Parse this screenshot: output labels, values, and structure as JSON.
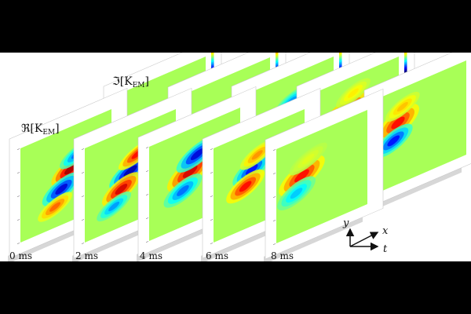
{
  "rows": {
    "real_label": "ℜ[K",
    "real_sub": "EM",
    "real_close": "]",
    "imag_label": "ℑ[K",
    "imag_sub": "EM",
    "imag_close": "]"
  },
  "time_labels": [
    "0 ms",
    "2 ms",
    "4 ms",
    "6 ms",
    "8 ms"
  ],
  "axes": {
    "y": "y",
    "x": "x",
    "t": "t"
  },
  "colorscale": "jet",
  "panels": {
    "real": [
      {
        "time": "0 ms",
        "blobs": [
          [
            0.55,
            0.45,
            0.1,
            0.05,
            1.0
          ],
          [
            0.45,
            0.62,
            0.1,
            0.05,
            -0.9
          ],
          [
            0.38,
            0.78,
            0.09,
            0.04,
            0.6
          ],
          [
            0.62,
            0.32,
            0.09,
            0.04,
            -0.6
          ]
        ]
      },
      {
        "time": "2 ms",
        "blobs": [
          [
            0.5,
            0.45,
            0.11,
            0.05,
            -1.0
          ],
          [
            0.4,
            0.6,
            0.1,
            0.05,
            0.9
          ],
          [
            0.58,
            0.3,
            0.1,
            0.04,
            0.8
          ],
          [
            0.32,
            0.75,
            0.09,
            0.04,
            -0.5
          ]
        ]
      },
      {
        "time": "4 ms",
        "blobs": [
          [
            0.45,
            0.45,
            0.12,
            0.06,
            0.9
          ],
          [
            0.53,
            0.3,
            0.11,
            0.05,
            -0.9
          ],
          [
            0.37,
            0.62,
            0.1,
            0.05,
            -0.6
          ]
        ]
      },
      {
        "time": "6 ms",
        "blobs": [
          [
            0.42,
            0.4,
            0.1,
            0.05,
            -0.8
          ],
          [
            0.35,
            0.55,
            0.1,
            0.05,
            0.8
          ],
          [
            0.48,
            0.27,
            0.09,
            0.04,
            0.5
          ]
        ]
      },
      {
        "time": "8 ms",
        "blobs": [
          [
            0.28,
            0.4,
            0.12,
            0.06,
            0.8
          ],
          [
            0.22,
            0.56,
            0.1,
            0.05,
            -0.4
          ],
          [
            0.35,
            0.25,
            0.1,
            0.04,
            0.2
          ]
        ]
      }
    ],
    "imag": [
      {
        "time": "0 ms",
        "blobs": [
          [
            0.55,
            0.55,
            0.1,
            0.05,
            1.0
          ],
          [
            0.45,
            0.38,
            0.09,
            0.04,
            -0.5
          ],
          [
            0.65,
            0.7,
            0.09,
            0.04,
            -0.4
          ]
        ]
      },
      {
        "time": "2 ms",
        "blobs": [
          [
            0.45,
            0.55,
            0.1,
            0.05,
            -1.0
          ],
          [
            0.55,
            0.38,
            0.1,
            0.05,
            0.9
          ],
          [
            0.35,
            0.7,
            0.09,
            0.04,
            0.4
          ]
        ]
      },
      {
        "time": "4 ms",
        "blobs": [
          [
            0.45,
            0.45,
            0.11,
            0.05,
            0.9
          ],
          [
            0.38,
            0.62,
            0.1,
            0.05,
            -1.0
          ],
          [
            0.54,
            0.28,
            0.09,
            0.04,
            -0.5
          ]
        ]
      },
      {
        "time": "6 ms",
        "blobs": [
          [
            0.4,
            0.35,
            0.12,
            0.06,
            1.0
          ],
          [
            0.32,
            0.52,
            0.1,
            0.05,
            -0.9
          ],
          [
            0.25,
            0.7,
            0.09,
            0.04,
            0.6
          ],
          [
            0.5,
            0.18,
            0.09,
            0.04,
            0.3
          ]
        ]
      },
      {
        "time": "8 ms",
        "blobs": [
          [
            0.25,
            0.35,
            0.11,
            0.06,
            0.8
          ],
          [
            0.2,
            0.52,
            0.1,
            0.05,
            -0.8
          ],
          [
            0.3,
            0.2,
            0.09,
            0.04,
            0.4
          ]
        ]
      }
    ]
  }
}
